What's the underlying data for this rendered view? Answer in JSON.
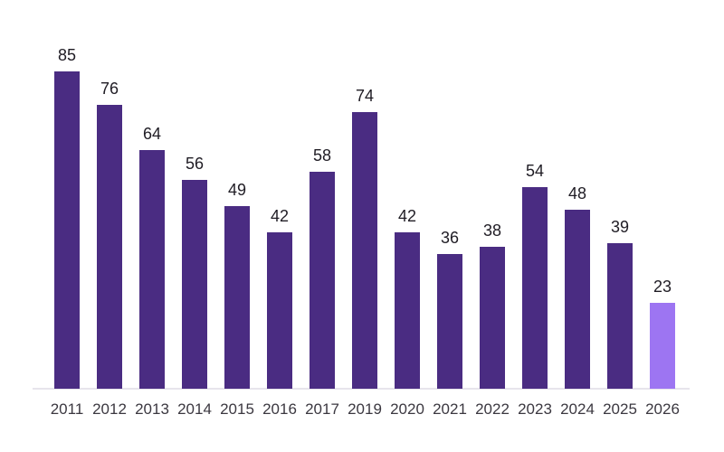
{
  "chart_data": {
    "type": "bar",
    "categories": [
      "2011",
      "2012",
      "2013",
      "2014",
      "2015",
      "2016",
      "2017",
      "2019",
      "2020",
      "2021",
      "2022",
      "2023",
      "2024",
      "2025",
      "2026"
    ],
    "values": [
      85,
      76,
      64,
      56,
      49,
      42,
      58,
      74,
      42,
      36,
      38,
      54,
      48,
      39,
      23
    ],
    "title": "",
    "xlabel": "",
    "ylabel": "",
    "ylim": [
      0,
      85
    ],
    "grid": false,
    "legend": "none",
    "value_labels_shown": true,
    "axis_line_color": "#e7e4ec",
    "bar_color": "#4a2c82",
    "highlight_color": "#9d75f2",
    "highlight_index": 14,
    "value_label_color": "#1f1c24",
    "tick_label_color": "#3b3840",
    "background_color": "#ffffff"
  }
}
